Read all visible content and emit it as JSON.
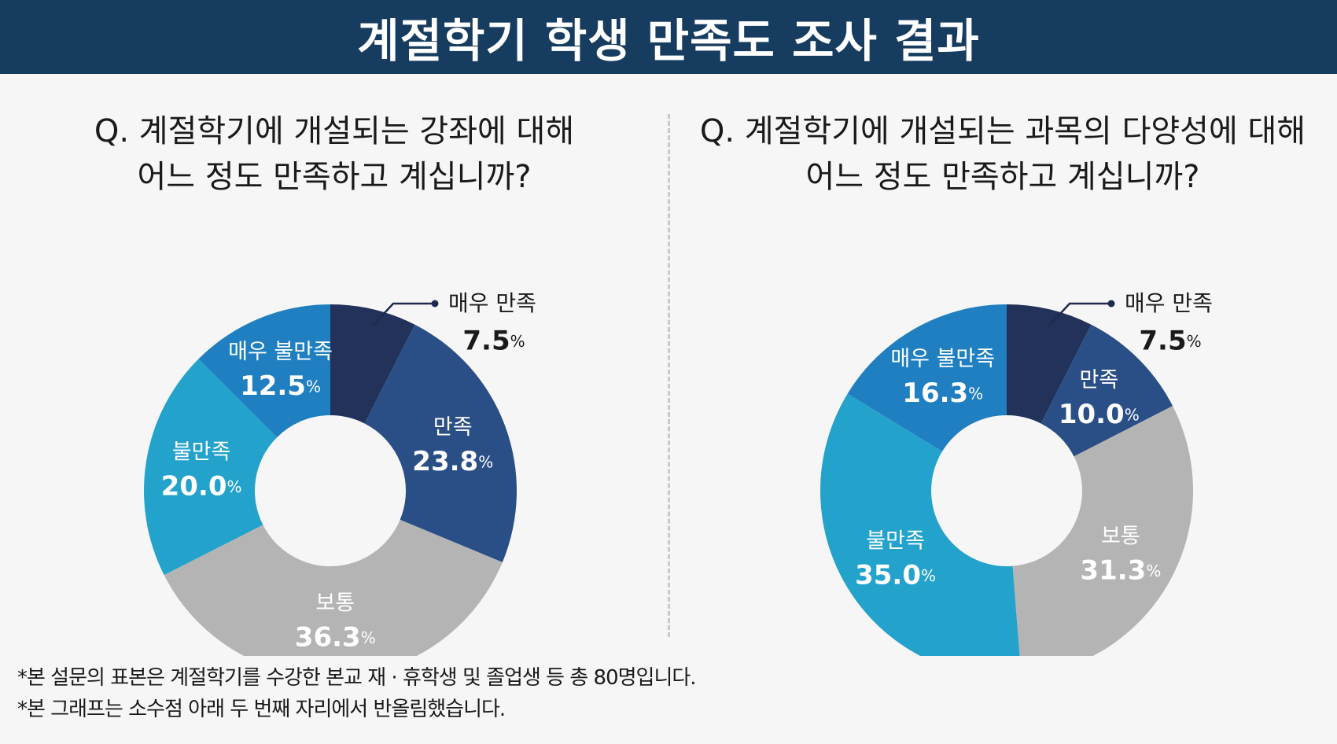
{
  "header": {
    "title": "계절학기 학생 만족도 조사 결과"
  },
  "chart_data": [
    {
      "type": "pie",
      "question_lines": [
        "Q. 계절학기에 개설되는 강좌에 대해",
        "어느 정도 만족하고 계십니까?"
      ],
      "unit": "%",
      "slices": [
        {
          "label": "매우 만족",
          "value": 7.5,
          "value_text": "7.5",
          "color": "#22325a"
        },
        {
          "label": "만족",
          "value": 23.8,
          "value_text": "23.8",
          "color": "#2a4f86"
        },
        {
          "label": "보통",
          "value": 36.3,
          "value_text": "36.3",
          "color": "#b4b4b4"
        },
        {
          "label": "불만족",
          "value": 20.0,
          "value_text": "20.0",
          "color": "#23a2cc"
        },
        {
          "label": "매우 불만족",
          "value": 12.5,
          "value_text": "12.5",
          "color": "#1f7fc1"
        }
      ]
    },
    {
      "type": "pie",
      "question_lines": [
        "Q. 계절학기에 개설되는 과목의 다양성에 대해",
        "어느 정도 만족하고 계십니까?"
      ],
      "unit": "%",
      "slices": [
        {
          "label": "매우 만족",
          "value": 7.5,
          "value_text": "7.5",
          "color": "#22325a"
        },
        {
          "label": "만족",
          "value": 10.0,
          "value_text": "10.0",
          "color": "#2a4f86"
        },
        {
          "label": "보통",
          "value": 31.3,
          "value_text": "31.3",
          "color": "#b4b4b4"
        },
        {
          "label": "불만족",
          "value": 35.0,
          "value_text": "35.0",
          "color": "#23a2cc"
        },
        {
          "label": "매우 불만족",
          "value": 16.3,
          "value_text": "16.3",
          "color": "#1f7fc1"
        }
      ]
    }
  ],
  "footnotes": [
    "*본 설문의 표본은 계절학기를 수강한 본교 재 · 휴학생 및 졸업생 등 총 80명입니다.",
    "*본 그래프는 소수점 아래 두 번째 자리에서 반올림했습니다."
  ]
}
